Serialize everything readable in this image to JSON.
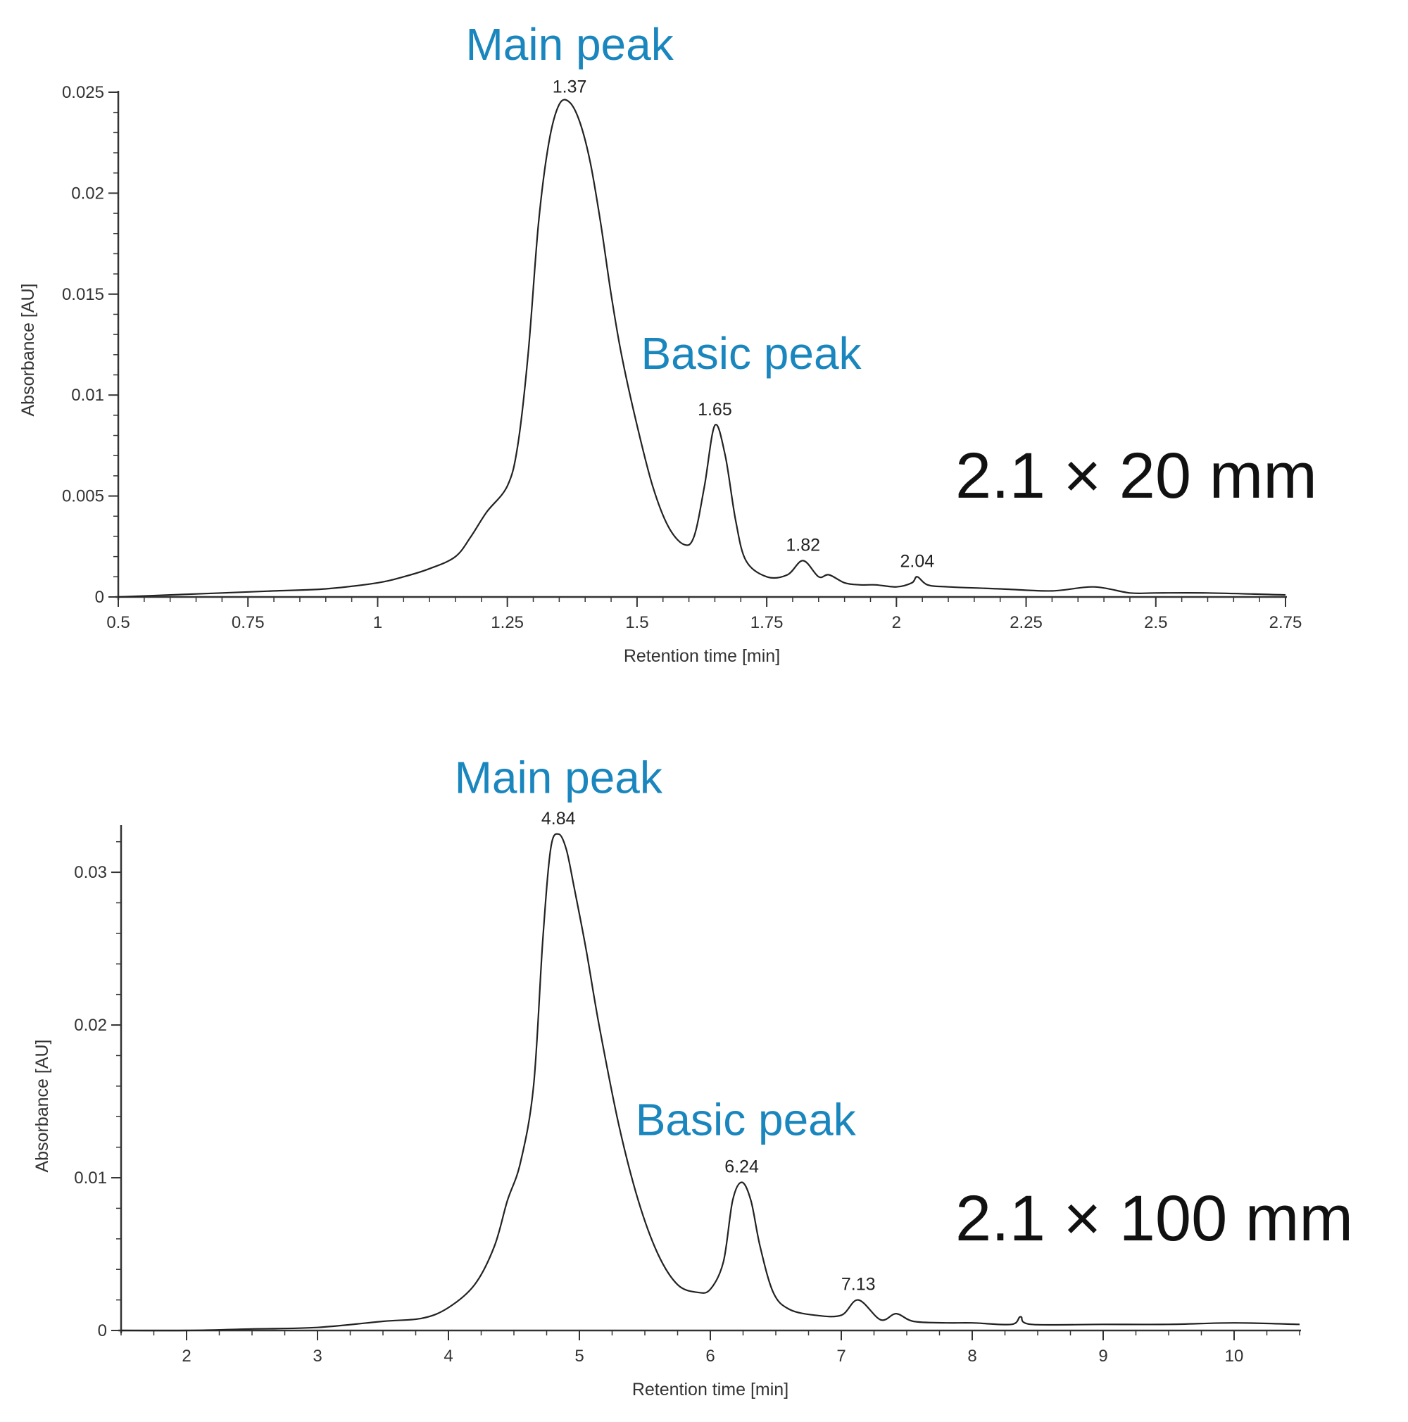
{
  "colors": {
    "annotation": "#1a86be",
    "trace": "#222222",
    "axis": "#333333",
    "background": "#ffffff"
  },
  "chart_data": [
    {
      "type": "line",
      "xlabel": "Retention time [min]",
      "ylabel": "Absorbance [AU]",
      "xlim": [
        0.5,
        2.75
      ],
      "ylim": [
        0,
        0.025
      ],
      "xticks": [
        "0.5",
        "0.75",
        "1",
        "1.25",
        "1.5",
        "1.75",
        "2",
        "2.25",
        "2.5",
        "2.75"
      ],
      "yticks": [
        "0",
        "0.005",
        "0.01",
        "0.015",
        "0.02",
        "0.025"
      ],
      "grid": false,
      "series": [
        {
          "x": [
            0.5,
            0.6,
            0.7,
            0.8,
            0.9,
            1.0,
            1.05,
            1.1,
            1.15,
            1.18,
            1.21,
            1.25,
            1.27,
            1.29,
            1.31,
            1.33,
            1.35,
            1.37,
            1.39,
            1.41,
            1.43,
            1.45,
            1.47,
            1.5,
            1.53,
            1.56,
            1.59,
            1.61,
            1.63,
            1.65,
            1.67,
            1.69,
            1.71,
            1.75,
            1.79,
            1.82,
            1.85,
            1.87,
            1.9,
            1.93,
            1.96,
            2.0,
            2.03,
            2.04,
            2.06,
            2.1,
            2.2,
            2.3,
            2.38,
            2.45,
            2.5,
            2.6,
            2.75
          ],
          "y": [
            0,
            0.0001,
            0.0002,
            0.0003,
            0.0004,
            0.0007,
            0.001,
            0.0014,
            0.002,
            0.003,
            0.0042,
            0.0055,
            0.0075,
            0.012,
            0.0185,
            0.0225,
            0.0244,
            0.0245,
            0.0235,
            0.0215,
            0.0185,
            0.015,
            0.012,
            0.0085,
            0.0055,
            0.0035,
            0.0026,
            0.003,
            0.0055,
            0.0085,
            0.007,
            0.0038,
            0.0018,
            0.001,
            0.0011,
            0.0018,
            0.001,
            0.0011,
            0.0007,
            0.0006,
            0.0006,
            0.0005,
            0.0007,
            0.001,
            0.0006,
            0.0005,
            0.0004,
            0.0003,
            0.0005,
            0.0002,
            0.0002,
            0.0002,
            0.0001
          ]
        }
      ],
      "peak_labels": [
        {
          "x": 1.37,
          "y": 0.0245,
          "text": "1.37"
        },
        {
          "x": 1.65,
          "y": 0.0085,
          "text": "1.65"
        },
        {
          "x": 1.82,
          "y": 0.0018,
          "text": "1.82"
        },
        {
          "x": 2.04,
          "y": 0.001,
          "text": "2.04"
        }
      ],
      "annotations": [
        {
          "text": "Main peak",
          "x": 1.37,
          "y": 0.0266
        },
        {
          "text": "Basic peak",
          "x": 1.72,
          "y": 0.0113
        }
      ],
      "column_label": "2.1 × 20 mm"
    },
    {
      "type": "line",
      "xlabel": "Retention time [min]",
      "ylabel": "Absorbance [AU]",
      "xlim": [
        1.5,
        10.5
      ],
      "ylim": [
        0,
        0.033
      ],
      "xticks": [
        "2",
        "3",
        "4",
        "5",
        "6",
        "7",
        "8",
        "9",
        "10"
      ],
      "yticks": [
        "0",
        "0.01",
        "0.02",
        "0.03"
      ],
      "grid": false,
      "series": [
        {
          "x": [
            1.5,
            2.0,
            2.5,
            3.0,
            3.5,
            3.8,
            4.0,
            4.2,
            4.35,
            4.45,
            4.55,
            4.65,
            4.72,
            4.78,
            4.84,
            4.9,
            4.96,
            5.05,
            5.15,
            5.3,
            5.45,
            5.6,
            5.75,
            5.9,
            6.0,
            6.1,
            6.17,
            6.24,
            6.31,
            6.38,
            6.48,
            6.6,
            6.8,
            7.0,
            7.13,
            7.3,
            7.42,
            7.55,
            7.8,
            8.0,
            8.3,
            8.37,
            8.45,
            9.0,
            9.5,
            10.0,
            10.5
          ],
          "y": [
            0,
            0,
            0.0001,
            0.0002,
            0.0006,
            0.0008,
            0.0015,
            0.003,
            0.0055,
            0.0085,
            0.011,
            0.016,
            0.0255,
            0.0315,
            0.0325,
            0.0315,
            0.029,
            0.025,
            0.02,
            0.0135,
            0.0085,
            0.005,
            0.003,
            0.0025,
            0.0027,
            0.0045,
            0.0085,
            0.0097,
            0.0085,
            0.0055,
            0.0025,
            0.0014,
            0.001,
            0.001,
            0.002,
            0.0007,
            0.0011,
            0.0006,
            0.0005,
            0.0005,
            0.0004,
            0.0009,
            0.0004,
            0.0004,
            0.0004,
            0.0005,
            0.0004
          ]
        }
      ],
      "peak_labels": [
        {
          "x": 4.84,
          "y": 0.0325,
          "text": "4.84"
        },
        {
          "x": 6.24,
          "y": 0.0097,
          "text": "6.24"
        },
        {
          "x": 7.13,
          "y": 0.002,
          "text": "7.13"
        }
      ],
      "annotations": [
        {
          "text": "Main peak",
          "x": 4.84,
          "y": 0.0352
        },
        {
          "text": "Basic peak",
          "x": 6.27,
          "y": 0.0128
        }
      ],
      "column_label": "2.1 × 100 mm"
    }
  ]
}
